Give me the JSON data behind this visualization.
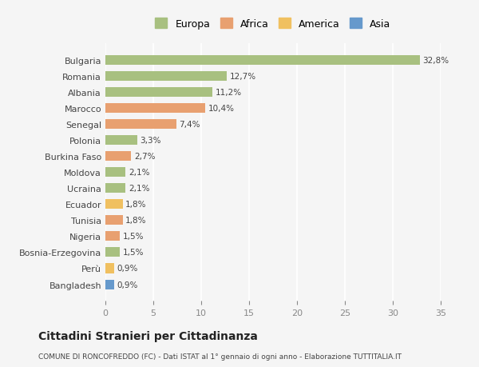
{
  "categories": [
    "Bangladesh",
    "Perù",
    "Bosnia-Erzegovina",
    "Nigeria",
    "Tunisia",
    "Ecuador",
    "Ucraina",
    "Moldova",
    "Burkina Faso",
    "Polonia",
    "Senegal",
    "Marocco",
    "Albania",
    "Romania",
    "Bulgaria"
  ],
  "values": [
    0.9,
    0.9,
    1.5,
    1.5,
    1.8,
    1.8,
    2.1,
    2.1,
    2.7,
    3.3,
    7.4,
    10.4,
    11.2,
    12.7,
    32.8
  ],
  "labels": [
    "0,9%",
    "0,9%",
    "1,5%",
    "1,5%",
    "1,8%",
    "1,8%",
    "2,1%",
    "2,1%",
    "2,7%",
    "3,3%",
    "7,4%",
    "10,4%",
    "11,2%",
    "12,7%",
    "32,8%"
  ],
  "colors": [
    "#6699cc",
    "#f0c060",
    "#a8c080",
    "#e8a070",
    "#e8a070",
    "#f0c060",
    "#a8c080",
    "#a8c080",
    "#e8a070",
    "#a8c080",
    "#e8a070",
    "#e8a070",
    "#a8c080",
    "#a8c080",
    "#a8c080"
  ],
  "continent": [
    "Asia",
    "America",
    "Europa",
    "Africa",
    "Africa",
    "America",
    "Europa",
    "Europa",
    "Africa",
    "Europa",
    "Africa",
    "Africa",
    "Europa",
    "Europa",
    "Europa"
  ],
  "legend_labels": [
    "Europa",
    "Africa",
    "America",
    "Asia"
  ],
  "legend_colors": [
    "#a8c080",
    "#e8a070",
    "#f0c060",
    "#6699cc"
  ],
  "title": "Cittadini Stranieri per Cittadinanza",
  "subtitle": "COMUNE DI RONCOFREDDO (FC) - Dati ISTAT al 1° gennaio di ogni anno - Elaborazione TUTTITALIA.IT",
  "xlim": [
    0,
    35
  ],
  "xticks": [
    0,
    5,
    10,
    15,
    20,
    25,
    30,
    35
  ],
  "bg_color": "#f5f5f5",
  "bar_height": 0.6
}
